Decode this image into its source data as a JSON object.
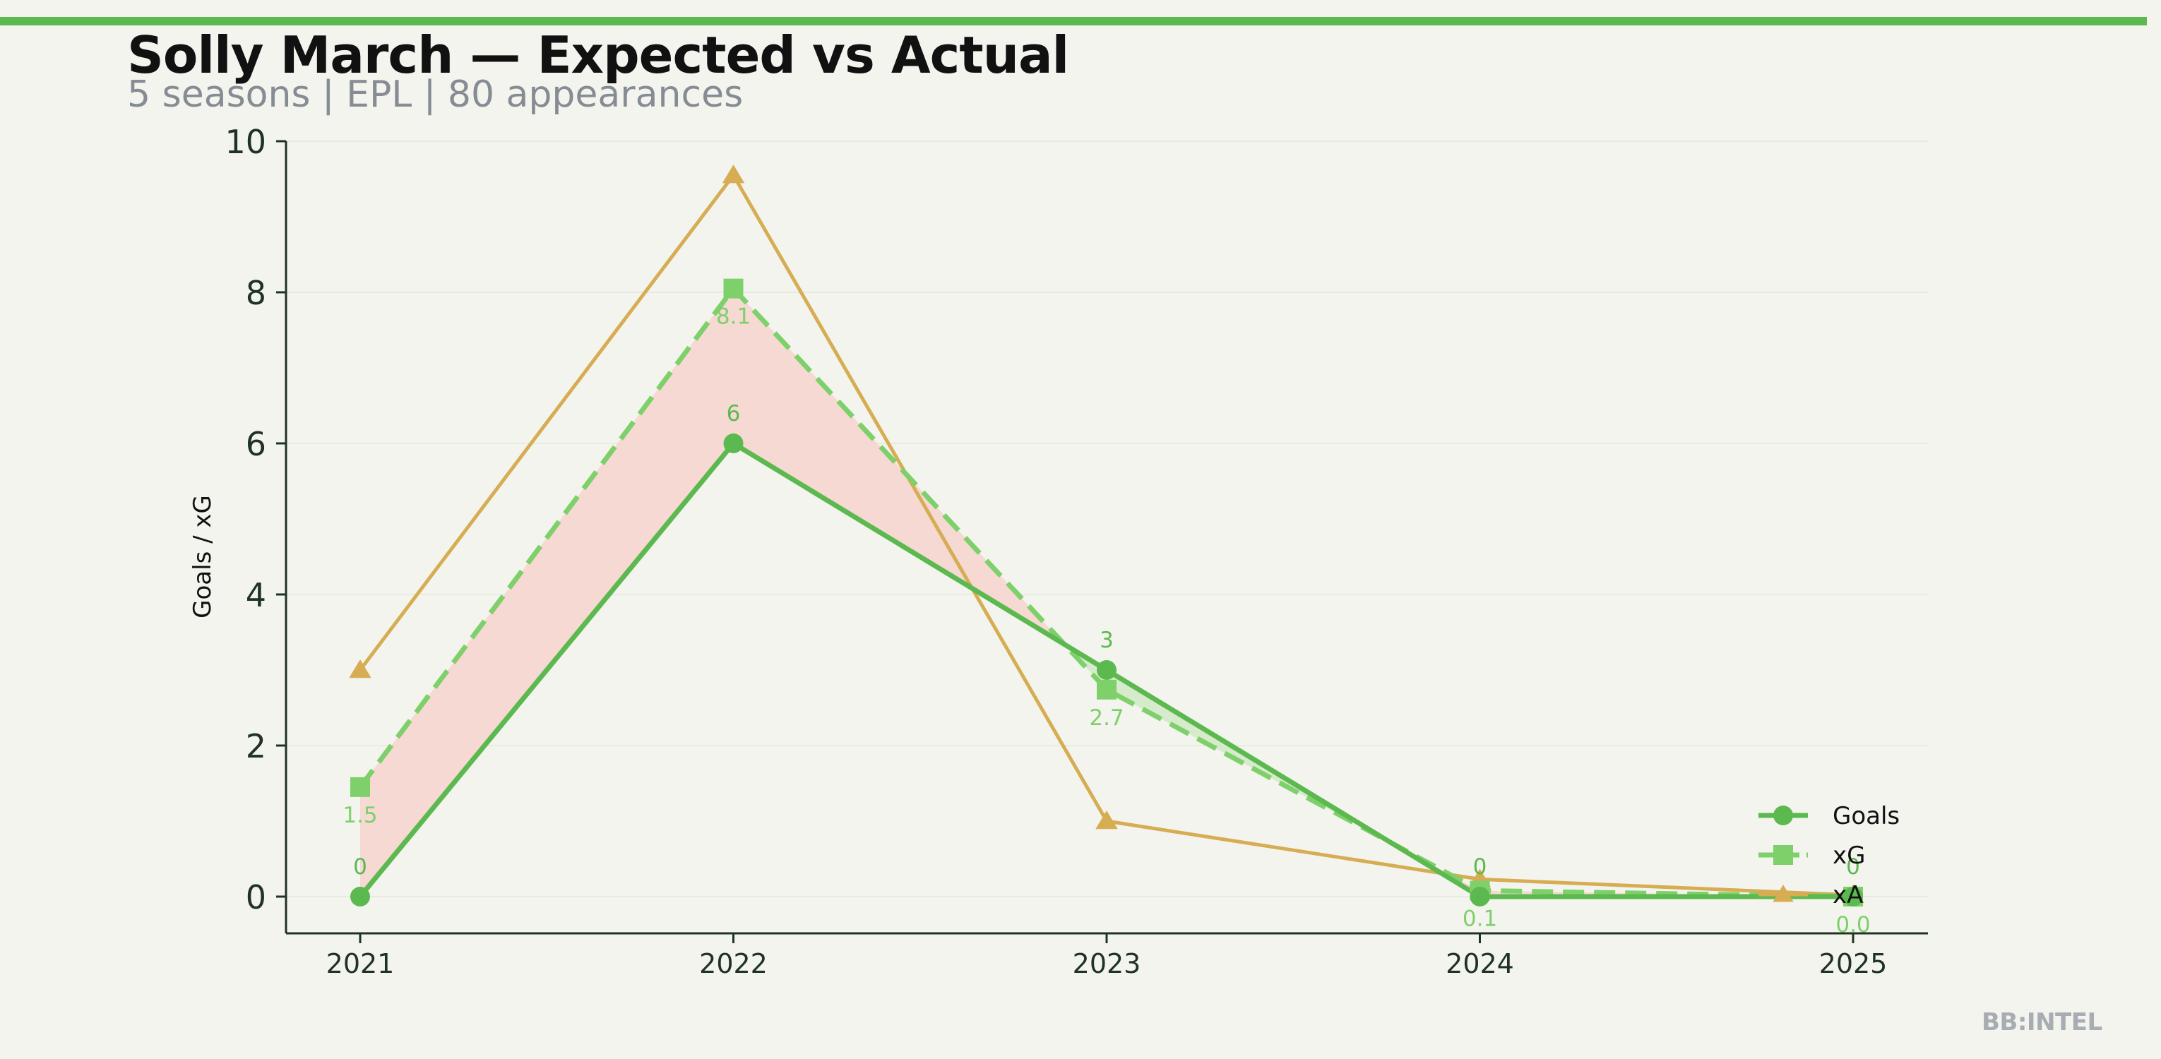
{
  "header": {
    "title": "Solly March — Expected vs Actual",
    "subtitle": "5 seasons | EPL | 80 appearances"
  },
  "watermark": "BB:INTEL",
  "colors": {
    "accent": "#5cb94f",
    "goals": "#5cb94f",
    "xg": "#7ed06a",
    "xa": "#d6ad52",
    "underperform_fill": "#f5d3cc",
    "overperform_fill": "#cfe9c6",
    "axis": "#1f3323"
  },
  "chart_data": {
    "type": "line",
    "ylabel": "Goals / xG",
    "xlabel": "",
    "ylim": [
      -0.5,
      10
    ],
    "yticks": [
      0,
      2,
      4,
      6,
      8,
      10
    ],
    "categories": [
      "2021",
      "2022",
      "2023",
      "2024",
      "2025"
    ],
    "grid": "horizontal",
    "legend_position": "bottom-right",
    "series": [
      {
        "name": "Goals",
        "values": [
          0,
          6,
          3,
          0,
          0
        ],
        "labels": [
          "0",
          "6",
          "3",
          "0",
          "0"
        ],
        "marker": "circle",
        "style": "solid"
      },
      {
        "name": "xG",
        "values": [
          1.45,
          8.05,
          2.74,
          0.08,
          0.0
        ],
        "labels": [
          "1.5",
          "8.1",
          "2.7",
          "0.1",
          "0.0"
        ],
        "marker": "square",
        "style": "dashed"
      },
      {
        "name": "xA",
        "values": [
          3.0,
          9.55,
          1.0,
          0.23,
          0.02
        ],
        "marker": "triangle",
        "style": "solid"
      }
    ]
  }
}
